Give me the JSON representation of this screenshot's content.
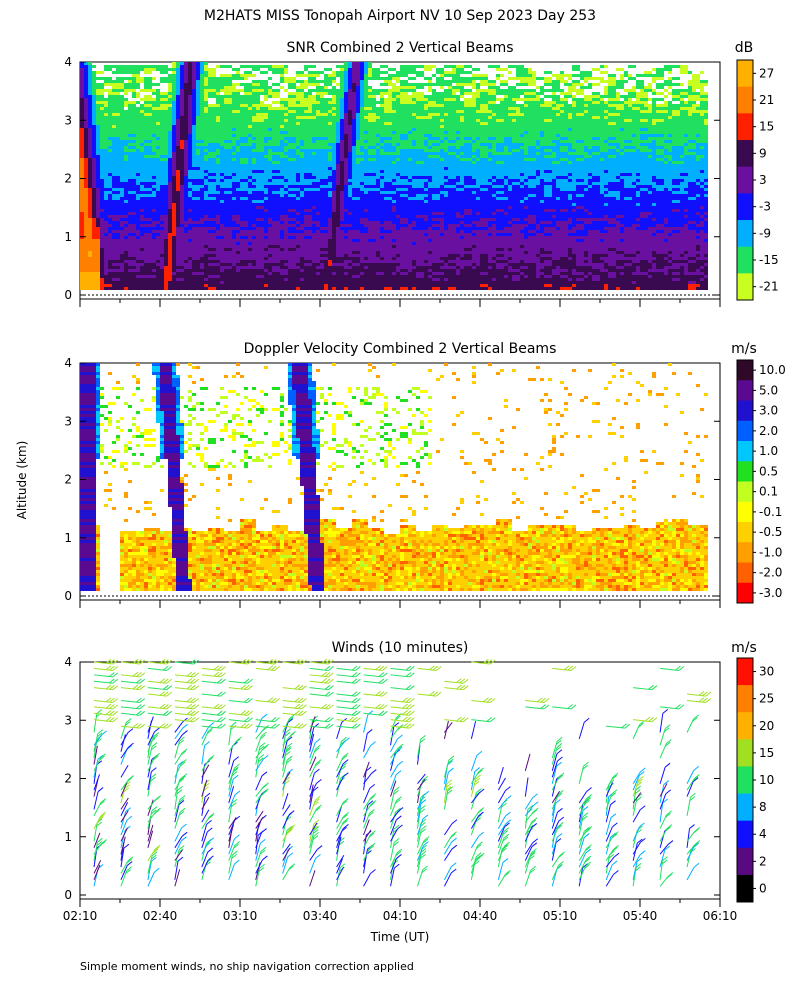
{
  "title": "M2HATS MISS Tonopah Airport NV  10 Sep 2023 Day 253",
  "y_axis_label": "Altitude (km)",
  "x_axis_label": "Time (UT)",
  "footnote": "Simple moment winds, no ship navigation correction applied",
  "chart_data": [
    {
      "type": "heatmap",
      "title": "SNR Combined 2 Vertical Beams",
      "units": "dB",
      "ylim": [
        0,
        4
      ],
      "yticks": [
        "0",
        "1",
        "2",
        "3",
        "4"
      ],
      "colorbar_ticks": [
        "27",
        "21",
        "15",
        "9",
        "3",
        "-3",
        "-9",
        "-15",
        "-21"
      ],
      "colorbar_colors": [
        "#ffb000",
        "#ff7f00",
        "#ff2000",
        "#3a0a50",
        "#6a10a0",
        "#1010ff",
        "#00b0ff",
        "#20e060",
        "#c8ff20"
      ],
      "colorbar_range": [
        -24,
        30
      ]
    },
    {
      "type": "heatmap",
      "title": "Doppler Velocity Combined 2 Vertical Beams",
      "units": "m/s",
      "ylim": [
        0,
        4
      ],
      "yticks": [
        "0",
        "1",
        "2",
        "3",
        "4"
      ],
      "colorbar_ticks": [
        "10.0",
        "5.0",
        "3.0",
        "2.0",
        "1.0",
        "0.5",
        "0.1",
        "-0.1",
        "-0.5",
        "-1.0",
        "-2.0",
        "-3.0"
      ],
      "colorbar_colors": [
        "#300828",
        "#5a0a90",
        "#2010d0",
        "#0060ff",
        "#00c8ff",
        "#20e020",
        "#c0ff20",
        "#ffff00",
        "#ffd000",
        "#ffa000",
        "#ff6000",
        "#ff0000"
      ]
    },
    {
      "type": "scatter",
      "title": "Winds (10 minutes)",
      "units": "m/s",
      "ylim": [
        0,
        4
      ],
      "yticks": [
        "0",
        "1",
        "2",
        "3",
        "4"
      ],
      "x": [
        "02:10",
        "02:40",
        "03:10",
        "03:40",
        "04:10",
        "04:40",
        "05:10",
        "05:40",
        "06:10"
      ],
      "colorbar_ticks": [
        "30",
        "25",
        "20",
        "15",
        "10",
        "8",
        "4",
        "2",
        "0"
      ],
      "colorbar_colors": [
        "#ff1000",
        "#ff8000",
        "#ffb000",
        "#a0e020",
        "#20e060",
        "#00b0ff",
        "#1010ff",
        "#5a0a80",
        "#000000"
      ]
    }
  ]
}
